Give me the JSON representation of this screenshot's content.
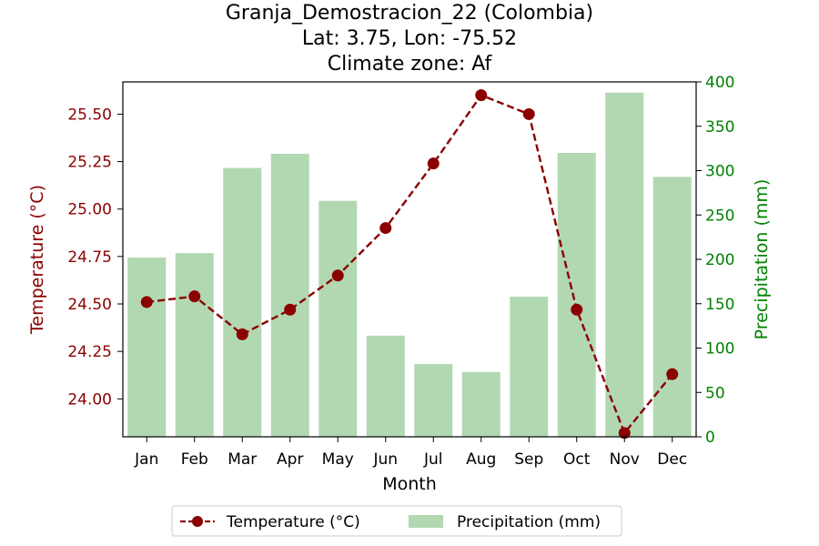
{
  "chart_data": {
    "type": "bar+line",
    "title_lines": [
      "Granja_Demostracion_22 (Colombia)",
      "Lat: 3.75, Lon: -75.52",
      "Climate zone: Af"
    ],
    "xlabel": "Month",
    "ylabel_left": "Temperature (°C)",
    "ylabel_right": "Precipitation (mm)",
    "categories": [
      "Jan",
      "Feb",
      "Mar",
      "Apr",
      "May",
      "Jun",
      "Jul",
      "Aug",
      "Sep",
      "Oct",
      "Nov",
      "Dec"
    ],
    "temperature": {
      "name": "Temperature (°C)",
      "color": "#8b0000",
      "values": [
        24.51,
        24.54,
        24.34,
        24.47,
        24.65,
        24.9,
        25.24,
        25.6,
        25.5,
        24.47,
        23.82,
        24.13
      ]
    },
    "precipitation": {
      "name": "Precipitation (mm)",
      "color": "#b2d8b2",
      "values": [
        202,
        207,
        303,
        319,
        266,
        114,
        82,
        73,
        158,
        320,
        388,
        293
      ]
    },
    "ylim_left": [
      23.8,
      25.67
    ],
    "ylim_right": [
      0,
      400
    ],
    "yticks_left": [
      "24.00",
      "24.25",
      "24.50",
      "24.75",
      "25.00",
      "25.25",
      "25.50"
    ],
    "yticks_right": [
      "0",
      "50",
      "100",
      "150",
      "200",
      "250",
      "300",
      "350",
      "400"
    ],
    "left_axis_color": "#8b0000",
    "right_axis_color": "#008000",
    "legend_position": "bottom-center",
    "grid": false
  }
}
